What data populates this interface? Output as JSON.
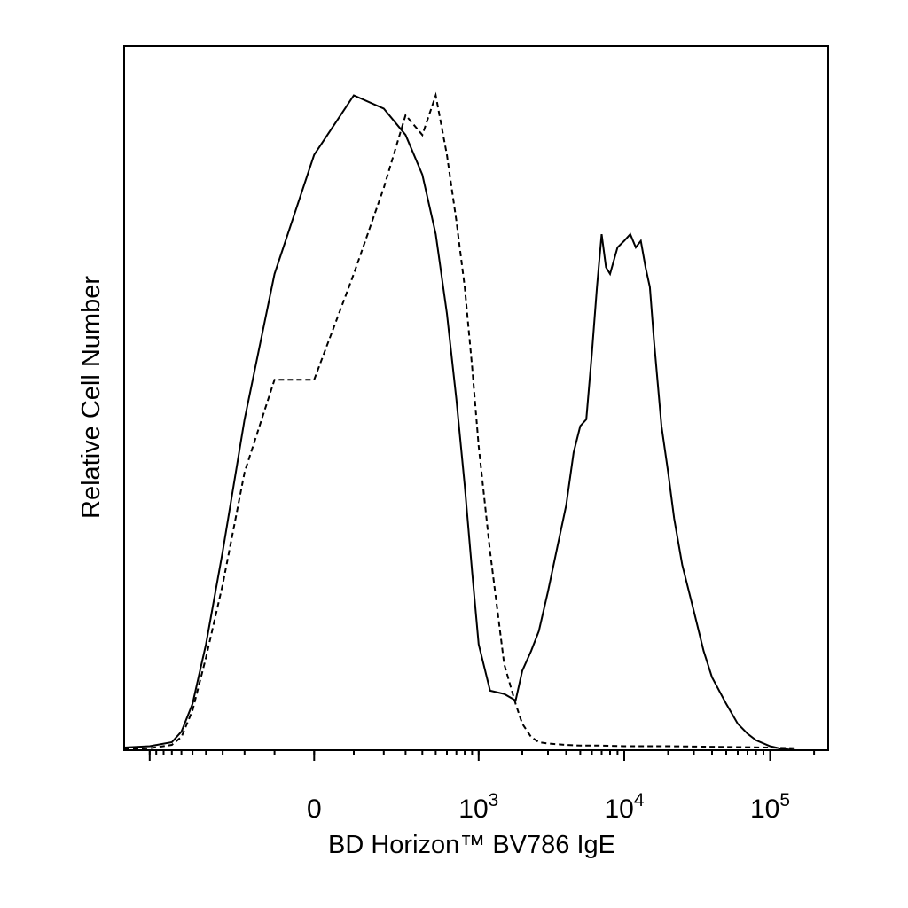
{
  "chart_data": {
    "type": "line",
    "title": "",
    "xlabel": "BD Horizon™ BV786 IgE",
    "ylabel": "Relative Cell Number",
    "x_scale": "biexponential",
    "xlim": [
      -1500,
      250000
    ],
    "ylim": [
      0,
      1
    ],
    "y_ticks_shown": false,
    "grid": false,
    "legend": "none",
    "x_tick_labels": [
      {
        "value": 0,
        "base": "0",
        "exp": ""
      },
      {
        "value": 1000,
        "base": "10",
        "exp": "3"
      },
      {
        "value": 10000,
        "base": "10",
        "exp": "4"
      },
      {
        "value": 100000,
        "base": "10",
        "exp": "5"
      }
    ],
    "series": [
      {
        "style": "solid",
        "x": [
          -1500,
          -1000,
          -700,
          -600,
          -500,
          -400,
          -300,
          -200,
          -100,
          0,
          100,
          200,
          300,
          400,
          500,
          600,
          700,
          800,
          900,
          1000,
          1200,
          1500,
          1800,
          2000,
          2300,
          2600,
          3000,
          3500,
          4000,
          4500,
          5000,
          5500,
          6000,
          6500,
          7000,
          7500,
          8000,
          9000,
          10000,
          11000,
          12000,
          13000,
          14000,
          15000,
          16000,
          18000,
          20000,
          22000,
          25000,
          30000,
          35000,
          40000,
          50000,
          60000,
          70000,
          80000,
          100000,
          120000,
          150000
        ],
        "y": [
          0.004,
          0.006,
          0.012,
          0.028,
          0.07,
          0.16,
          0.3,
          0.5,
          0.72,
          0.9,
          0.99,
          0.97,
          0.93,
          0.87,
          0.78,
          0.66,
          0.53,
          0.4,
          0.27,
          0.16,
          0.09,
          0.085,
          0.075,
          0.12,
          0.15,
          0.18,
          0.24,
          0.31,
          0.37,
          0.45,
          0.49,
          0.5,
          0.6,
          0.7,
          0.78,
          0.73,
          0.72,
          0.76,
          0.77,
          0.78,
          0.76,
          0.77,
          0.73,
          0.7,
          0.62,
          0.49,
          0.42,
          0.35,
          0.28,
          0.21,
          0.15,
          0.11,
          0.07,
          0.04,
          0.025,
          0.015,
          0.006,
          0.002,
          0.0
        ]
      },
      {
        "style": "dashed",
        "x": [
          -1500,
          -1000,
          -700,
          -600,
          -500,
          -400,
          -300,
          -200,
          -100,
          0,
          100,
          200,
          300,
          400,
          500,
          600,
          700,
          800,
          900,
          1000,
          1200,
          1500,
          1800,
          2000,
          2300,
          2600,
          3000,
          3500,
          4000,
          5000,
          7000,
          10000,
          20000,
          50000,
          100000,
          150000
        ],
        "y": [
          0.002,
          0.003,
          0.008,
          0.02,
          0.06,
          0.14,
          0.25,
          0.42,
          0.56,
          0.56,
          0.72,
          0.85,
          0.96,
          0.93,
          0.99,
          0.9,
          0.8,
          0.7,
          0.58,
          0.46,
          0.3,
          0.13,
          0.07,
          0.04,
          0.02,
          0.012,
          0.01,
          0.009,
          0.008,
          0.007,
          0.007,
          0.006,
          0.006,
          0.005,
          0.004,
          0.003
        ]
      }
    ]
  }
}
